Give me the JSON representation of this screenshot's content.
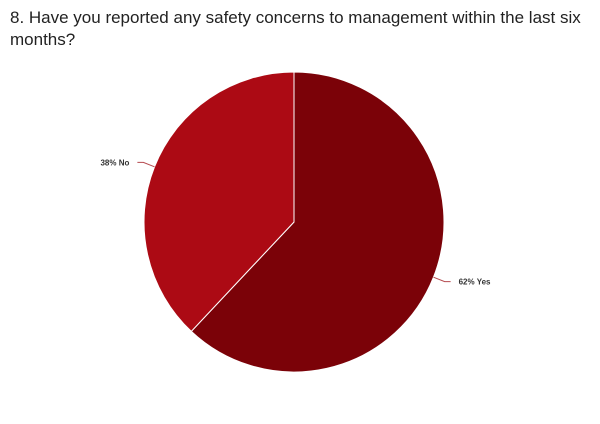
{
  "question": "8. Have you reported any safety concerns to management within the last six months?",
  "colors": {
    "yes": "#7b0208",
    "no": "#ac0a14",
    "leader": "#b54a4f"
  },
  "chart_data": {
    "type": "pie",
    "title": "8. Have you reported any safety concerns to management within the last six months?",
    "slices": [
      {
        "category": "Yes",
        "value": 62,
        "label": "62% Yes"
      },
      {
        "category": "No",
        "value": 38,
        "label": "38% No"
      }
    ],
    "start": "12 o'clock",
    "direction": "clockwise"
  }
}
